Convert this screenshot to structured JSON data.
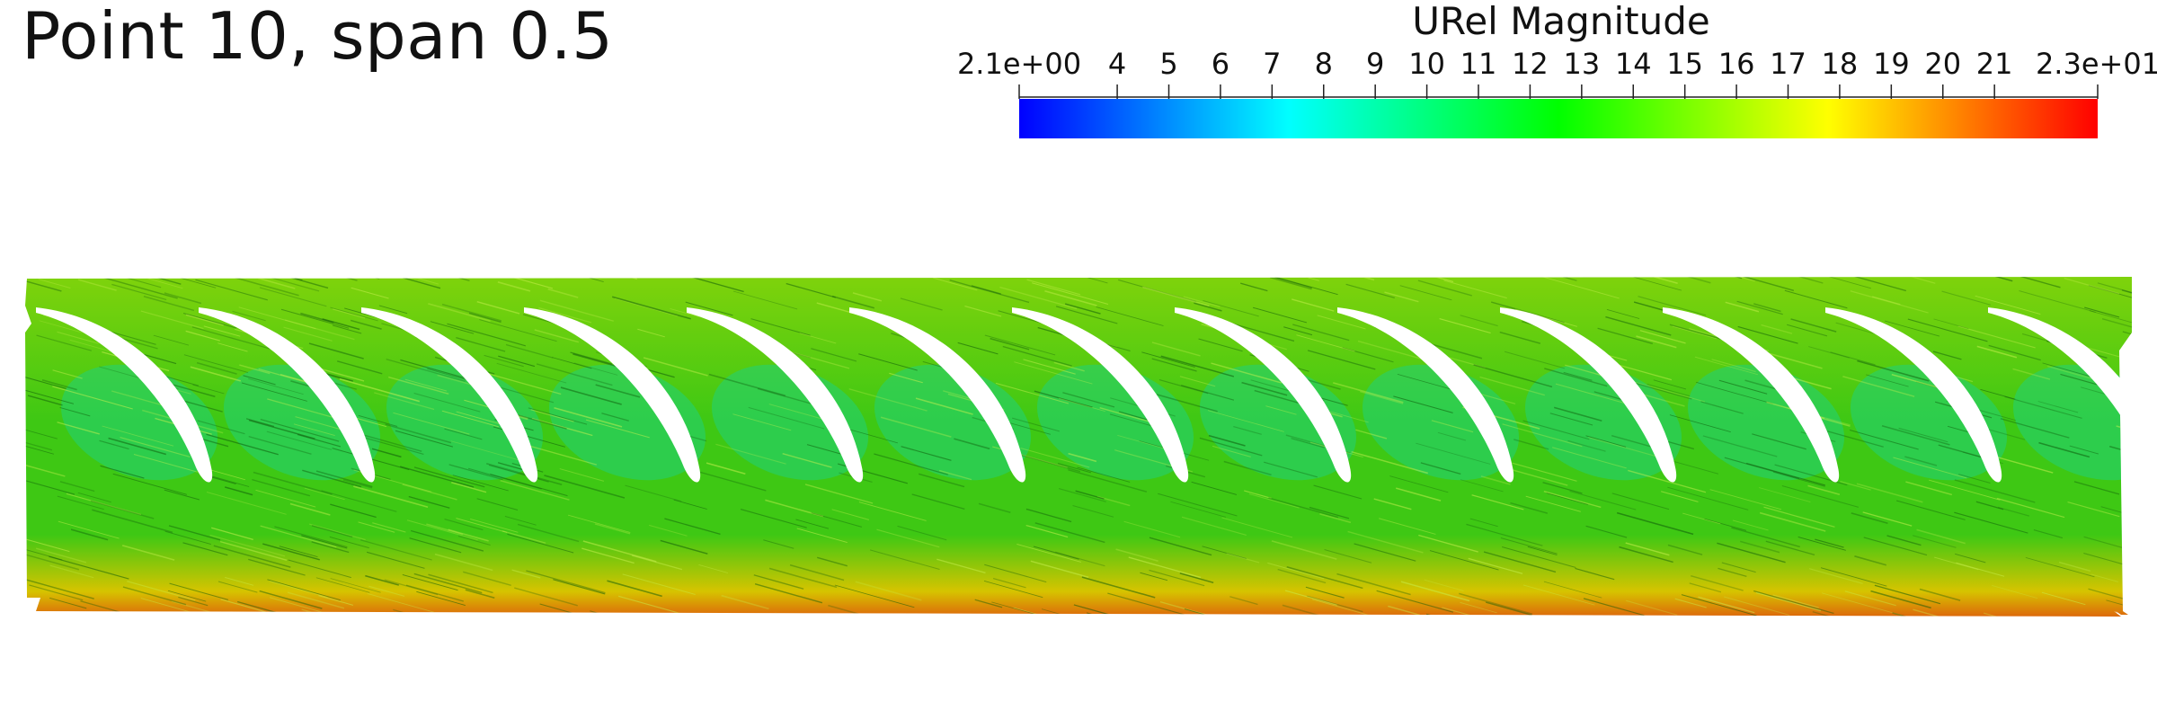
{
  "title": "Point 10, span 0.5",
  "colorbar": {
    "title": "URel Magnitude",
    "min": 2.1,
    "max": 23,
    "min_label": "2.1e+00",
    "max_label": "2.3e+01",
    "tick_values": [
      4,
      5,
      6,
      7,
      8,
      9,
      10,
      11,
      12,
      13,
      14,
      15,
      16,
      17,
      18,
      19,
      20,
      21
    ],
    "tick_labels": [
      "4",
      "5",
      "6",
      "7",
      "8",
      "9",
      "10",
      "11",
      "12",
      "13",
      "14",
      "15",
      "16",
      "17",
      "18",
      "19",
      "20",
      "21"
    ],
    "colors": [
      "#0000ff",
      "#00ffff",
      "#00ff00",
      "#ffff00",
      "#ff0000"
    ]
  },
  "flow_field": {
    "blade_count": 13,
    "colors": {
      "bulk": "#3ec814",
      "wake": "#1fd27a",
      "upper": "#8ad40a",
      "lower": "#d6c400",
      "hub": "#e03a10",
      "streak_dark": "#0f5a0a",
      "streak_light": "#c8f050"
    }
  }
}
